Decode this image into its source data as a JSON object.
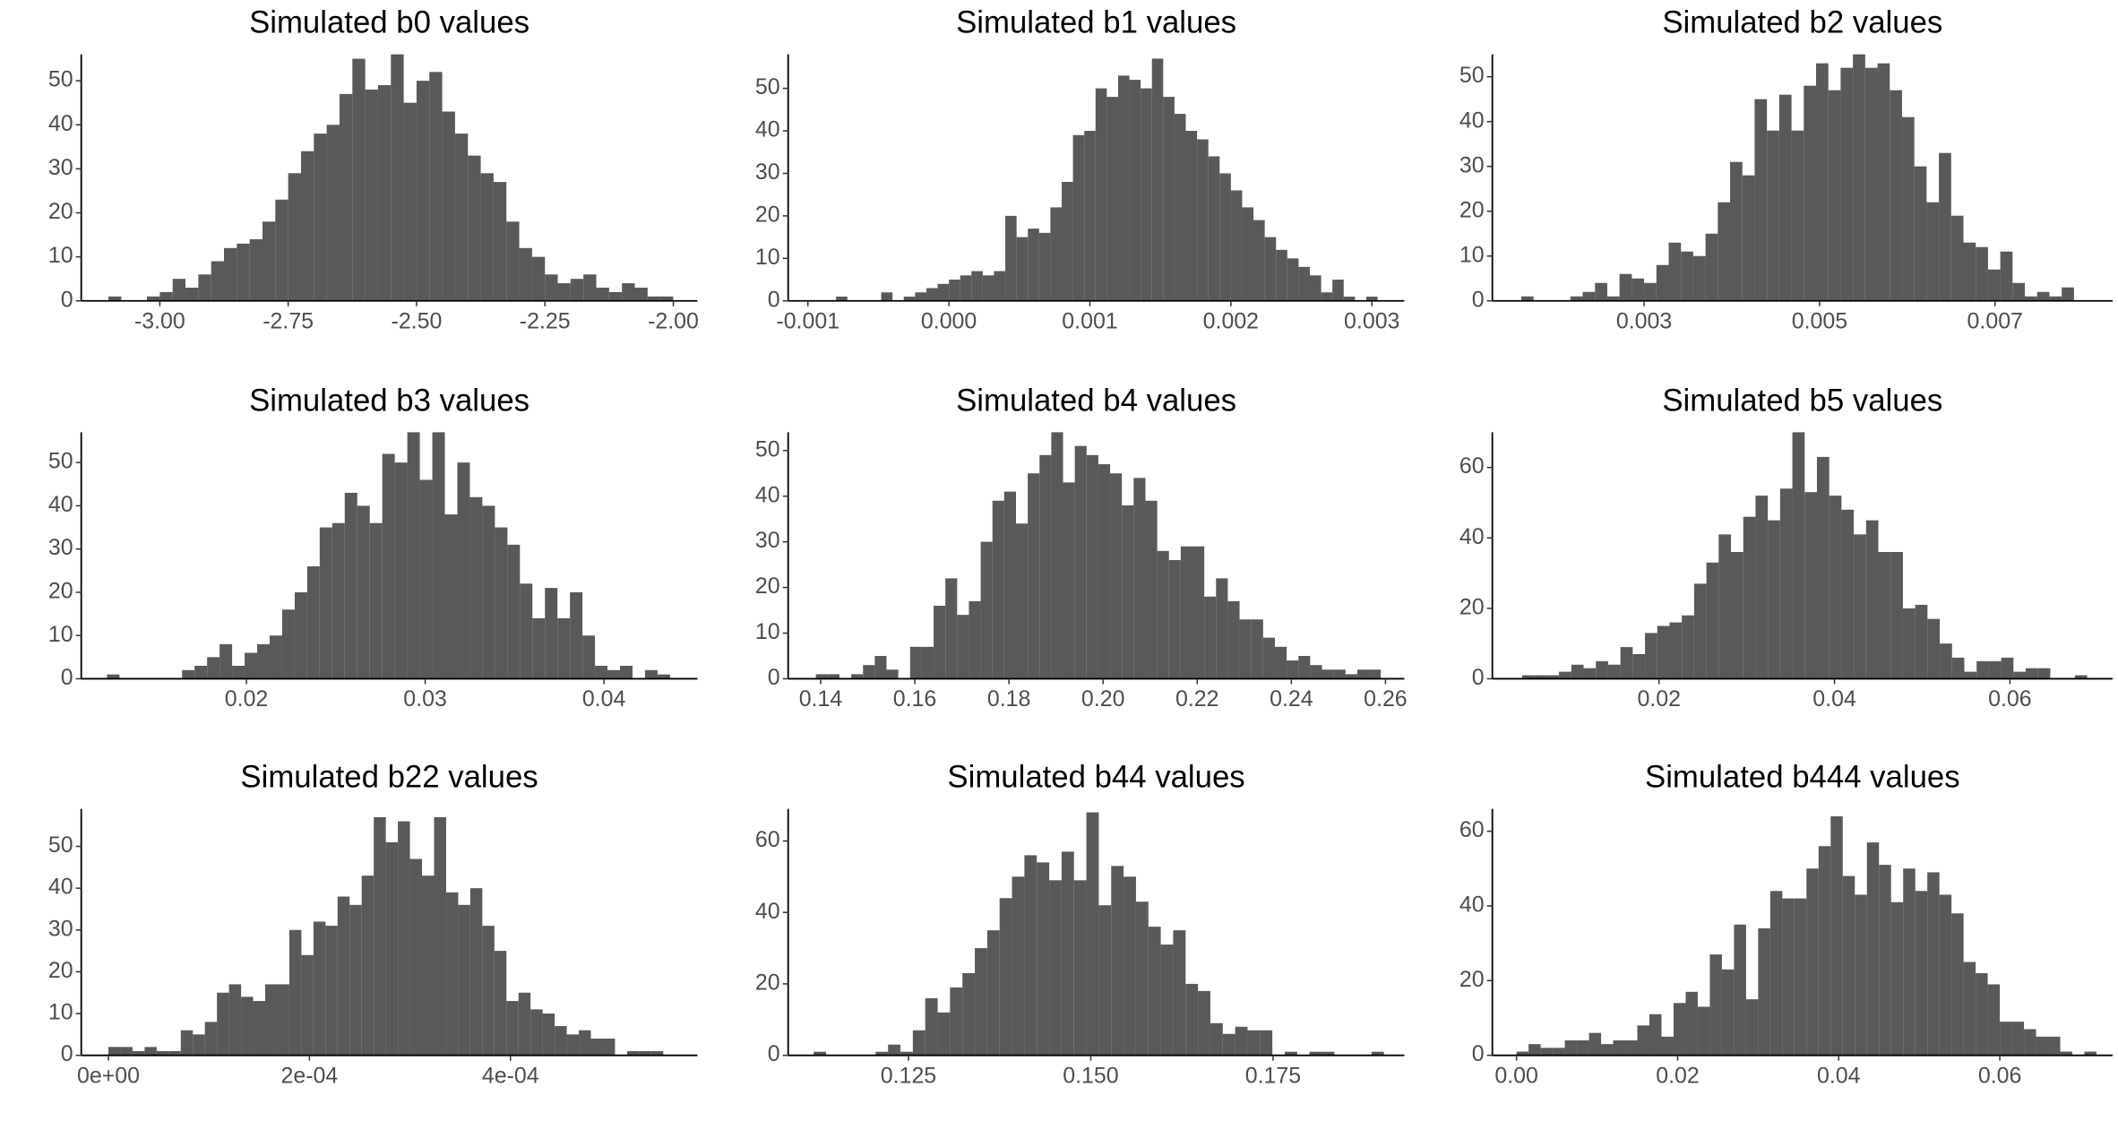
{
  "chart_data": [
    {
      "type": "histogram",
      "title": "Simulated b0 values",
      "color": "#595959",
      "bins": [
        -3.1,
        -3.075,
        -3.05,
        -3.025,
        -3,
        -2.975,
        -2.95,
        -2.925,
        -2.9,
        -2.875,
        -2.85,
        -2.825,
        -2.8,
        -2.775,
        -2.75,
        -2.725,
        -2.7,
        -2.675,
        -2.65,
        -2.625,
        -2.6,
        -2.575,
        -2.55,
        -2.525,
        -2.5,
        -2.475,
        -2.45,
        -2.425,
        -2.4,
        -2.375,
        -2.35,
        -2.325,
        -2.3,
        -2.275,
        -2.25,
        -2.225,
        -2.2,
        -2.175,
        -2.15,
        -2.125,
        -2.1,
        -2.075,
        -2.05,
        -2.025,
        -2
      ],
      "values": [
        1,
        0,
        0,
        1,
        2,
        5,
        3,
        6,
        9,
        12,
        13,
        14,
        18,
        23,
        29,
        34,
        38,
        40,
        47,
        55,
        48,
        49,
        56,
        45,
        50,
        52,
        43,
        38,
        33,
        29,
        27,
        18,
        12,
        10,
        6,
        4,
        5,
        6,
        3,
        2,
        4,
        3,
        1,
        1
      ],
      "xlim": [
        -3.153,
        -1.953
      ],
      "ylim": [
        0,
        56
      ],
      "xticks": [
        {
          "value": -3,
          "label": "-3.00"
        },
        -2.75,
        {
          "value": -2.5,
          "label": "-2.50"
        },
        -2.25,
        {
          "value": -2,
          "label": "-2.00"
        }
      ],
      "yticks": [
        0,
        10,
        20,
        30,
        40,
        50
      ]
    },
    {
      "type": "histogram",
      "title": "Simulated b1 values",
      "color": "#595959",
      "bins": [
        -0.0008,
        -0.00072,
        -0.00064,
        -0.00056,
        -0.00048,
        -0.0004,
        -0.00032,
        -0.00024,
        -0.00016,
        -8e-05,
        0,
        8e-05,
        0.00016,
        0.00024,
        0.00032,
        0.0004,
        0.00048,
        0.00056,
        0.00064,
        0.00072,
        0.0008,
        0.00088,
        0.00096,
        0.00104,
        0.00112,
        0.0012,
        0.00128,
        0.00136,
        0.00144,
        0.00152,
        0.0016,
        0.00168,
        0.00176,
        0.00184,
        0.00192,
        0.002,
        0.00208,
        0.00216,
        0.00224,
        0.00232,
        0.0024,
        0.00248,
        0.00256,
        0.00264,
        0.00272,
        0.0028,
        0.00288,
        0.00296,
        0.00304
      ],
      "values": [
        1,
        0,
        0,
        0,
        2,
        0,
        1,
        2,
        3,
        4,
        5,
        6,
        7,
        6,
        7,
        20,
        15,
        17,
        16,
        22,
        28,
        39,
        40,
        50,
        48,
        53,
        52,
        50,
        57,
        48,
        44,
        40,
        38,
        34,
        30,
        26,
        22,
        19,
        15,
        12,
        10,
        8,
        6,
        2,
        5,
        1,
        0,
        1
      ],
      "xlim": [
        -0.00114,
        0.00323
      ],
      "ylim": [
        0,
        58
      ],
      "xticks": [
        -0.001,
        {
          "value": 0,
          "label": "0.000"
        },
        0.001,
        0.002,
        0.003
      ],
      "yticks": [
        0,
        10,
        20,
        30,
        40,
        50
      ]
    },
    {
      "type": "histogram",
      "title": "Simulated b2 values",
      "color": "#595959",
      "bins": [
        0.0016,
        0.00174,
        0.00188,
        0.00202,
        0.00216,
        0.0023,
        0.00244,
        0.00258,
        0.00272,
        0.00286,
        0.003,
        0.00314,
        0.00328,
        0.00342,
        0.00356,
        0.0037,
        0.00384,
        0.00398,
        0.00412,
        0.00426,
        0.0044,
        0.00454,
        0.00468,
        0.00482,
        0.00496,
        0.0051,
        0.00524,
        0.00538,
        0.00552,
        0.00566,
        0.0058,
        0.00594,
        0.00608,
        0.00622,
        0.00636,
        0.0065,
        0.00664,
        0.00678,
        0.00692,
        0.00706,
        0.0072,
        0.00734,
        0.00748,
        0.00762,
        0.00776,
        0.0079
      ],
      "values": [
        1,
        0,
        0,
        0,
        1,
        2,
        4,
        1,
        6,
        5,
        4,
        8,
        13,
        11,
        10,
        15,
        22,
        31,
        28,
        45,
        38,
        46,
        38,
        48,
        53,
        47,
        52,
        55,
        52,
        53,
        47,
        41,
        30,
        22,
        33,
        19,
        13,
        12,
        7,
        11,
        4,
        1,
        2,
        1,
        3
      ],
      "xlim": [
        0.00127,
        0.00834
      ],
      "ylim": [
        0,
        55
      ],
      "xticks": [
        0.003,
        0.005,
        0.007
      ],
      "yticks": [
        0,
        10,
        20,
        30,
        40,
        50
      ]
    },
    {
      "type": "histogram",
      "title": "Simulated b3 values",
      "color": "#595959",
      "bins": [
        0.0122,
        0.0129,
        0.0136,
        0.0143,
        0.015,
        0.0157,
        0.0164,
        0.0171,
        0.0178,
        0.0185,
        0.0192,
        0.0199,
        0.0206,
        0.0213,
        0.022,
        0.0227,
        0.0234,
        0.0241,
        0.0248,
        0.0255,
        0.0262,
        0.0269,
        0.0276,
        0.0283,
        0.029,
        0.0297,
        0.0304,
        0.0311,
        0.0318,
        0.0325,
        0.0332,
        0.0339,
        0.0346,
        0.0353,
        0.036,
        0.0367,
        0.0374,
        0.0381,
        0.0388,
        0.0395,
        0.0402,
        0.0409,
        0.0416,
        0.0423,
        0.043,
        0.0437
      ],
      "values": [
        1,
        0,
        0,
        0,
        0,
        0,
        2,
        3,
        5,
        8,
        3,
        6,
        8,
        10,
        16,
        20,
        26,
        35,
        36,
        43,
        40,
        36,
        52,
        50,
        57,
        46,
        57,
        38,
        50,
        42,
        40,
        35,
        31,
        22,
        14,
        21,
        14,
        20,
        10,
        3,
        2,
        3,
        0,
        2,
        1
      ],
      "xlim": [
        0.01076,
        0.04523
      ],
      "ylim": [
        0,
        57
      ],
      "xticks": [
        0.02,
        0.03,
        0.04
      ],
      "yticks": [
        0,
        10,
        20,
        30,
        40,
        50
      ]
    },
    {
      "type": "histogram",
      "title": "Simulated b4 values",
      "color": "#595959",
      "bins": [
        0.139,
        0.1415,
        0.144,
        0.1465,
        0.149,
        0.1515,
        0.154,
        0.1565,
        0.159,
        0.1615,
        0.164,
        0.1665,
        0.169,
        0.1715,
        0.174,
        0.1765,
        0.179,
        0.1815,
        0.184,
        0.1865,
        0.189,
        0.1915,
        0.194,
        0.1965,
        0.199,
        0.2015,
        0.204,
        0.2065,
        0.209,
        0.2115,
        0.214,
        0.2165,
        0.219,
        0.2215,
        0.224,
        0.2265,
        0.229,
        0.2315,
        0.234,
        0.2365,
        0.239,
        0.2415,
        0.244,
        0.2465,
        0.249,
        0.2515,
        0.254,
        0.2565,
        0.259
      ],
      "values": [
        1,
        1,
        0,
        1,
        3,
        5,
        2,
        0,
        7,
        7,
        16,
        22,
        14,
        17,
        30,
        39,
        41,
        34,
        45,
        49,
        54,
        43,
        51,
        49,
        47,
        45,
        38,
        44,
        39,
        28,
        26,
        29,
        29,
        18,
        22,
        17,
        13,
        13,
        9,
        7,
        4,
        5,
        3,
        2,
        2,
        1,
        2,
        2
      ],
      "xlim": [
        0.1331,
        0.264
      ],
      "ylim": [
        0,
        54
      ],
      "xticks": [
        0.14,
        0.16,
        0.18,
        {
          "value": 0.2,
          "label": "0.20"
        },
        0.22,
        0.24,
        0.26
      ],
      "yticks": [
        0,
        10,
        20,
        30,
        40,
        50
      ]
    },
    {
      "type": "histogram",
      "title": "Simulated b5 values",
      "color": "#595959",
      "bins": [
        0.0044,
        0.0058,
        0.0072,
        0.0086,
        0.01,
        0.0114,
        0.0128,
        0.0142,
        0.0156,
        0.017,
        0.0184,
        0.0198,
        0.0212,
        0.0226,
        0.024,
        0.0254,
        0.0268,
        0.0282,
        0.0296,
        0.031,
        0.0324,
        0.0338,
        0.0352,
        0.0366,
        0.038,
        0.0394,
        0.0408,
        0.0422,
        0.0436,
        0.045,
        0.0464,
        0.0478,
        0.0492,
        0.0506,
        0.052,
        0.0534,
        0.0548,
        0.0562,
        0.0576,
        0.059,
        0.0604,
        0.0618,
        0.0632,
        0.0646,
        0.066,
        0.0674,
        0.0688
      ],
      "values": [
        1,
        1,
        1,
        2,
        4,
        3,
        5,
        4,
        9,
        7,
        13,
        15,
        16,
        18,
        27,
        33,
        41,
        36,
        46,
        52,
        45,
        54,
        70,
        53,
        63,
        52,
        48,
        41,
        45,
        36,
        36,
        20,
        21,
        17,
        10,
        6,
        2,
        5,
        5,
        6,
        2,
        3,
        3,
        0,
        0,
        1
      ],
      "xlim": [
        0.001,
        0.0717
      ],
      "ylim": [
        0,
        70
      ],
      "xticks": [
        0.02,
        0.04,
        0.06
      ],
      "yticks": [
        0,
        20,
        40,
        60
      ]
    },
    {
      "type": "histogram",
      "title": "Simulated b22 values",
      "color": "#595959",
      "bins": [
        0,
        1.2e-05,
        2.4e-05,
        3.6e-05,
        4.8e-05,
        6e-05,
        7.2e-05,
        8.4e-05,
        9.6e-05,
        0.000108,
        0.00012,
        0.000132,
        0.000144,
        0.000156,
        0.000168,
        0.00018,
        0.000192,
        0.000204,
        0.000216,
        0.000228,
        0.00024,
        0.000252,
        0.000264,
        0.000276,
        0.000288,
        0.0003,
        0.000312,
        0.000324,
        0.000336,
        0.000348,
        0.00036,
        0.000372,
        0.000384,
        0.000396,
        0.000408,
        0.00042,
        0.000432,
        0.000444,
        0.000456,
        0.000468,
        0.00048,
        0.000492,
        0.000504,
        0.000516,
        0.000528,
        0.00054,
        0.000552
      ],
      "values": [
        2,
        2,
        1,
        2,
        1,
        1,
        6,
        5,
        8,
        15,
        17,
        14,
        13,
        17,
        17,
        30,
        24,
        32,
        31,
        38,
        36,
        43,
        57,
        51,
        56,
        47,
        43,
        57,
        39,
        36,
        40,
        31,
        25,
        13,
        15,
        11,
        10,
        7,
        5,
        6,
        4,
        4,
        0,
        1,
        1,
        1
      ],
      "xlim": [
        -2.7e-05,
        0.000586
      ],
      "ylim": [
        0,
        59
      ],
      "xticks": [
        {
          "value": 0,
          "label": "0e+00"
        },
        {
          "value": 0.0002,
          "label": "2e-04"
        },
        {
          "value": 0.0004,
          "label": "4e-04"
        }
      ],
      "yticks": [
        0,
        10,
        20,
        30,
        40,
        50
      ]
    },
    {
      "type": "histogram",
      "title": "Simulated b44 values",
      "color": "#595959",
      "bins": [
        0.112,
        0.1137,
        0.1154,
        0.1171,
        0.1188,
        0.1205,
        0.1222,
        0.1239,
        0.1256,
        0.1273,
        0.129,
        0.1307,
        0.1324,
        0.1341,
        0.1358,
        0.1375,
        0.1392,
        0.1409,
        0.1426,
        0.1443,
        0.146,
        0.1477,
        0.1494,
        0.1511,
        0.1528,
        0.1545,
        0.1562,
        0.1579,
        0.1596,
        0.1613,
        0.163,
        0.1647,
        0.1664,
        0.1681,
        0.1698,
        0.1715,
        0.1732,
        0.1749,
        0.1766,
        0.1783,
        0.18,
        0.1817,
        0.1834,
        0.1851,
        0.1868,
        0.1885,
        0.1902
      ],
      "values": [
        1,
        0,
        0,
        0,
        0,
        1,
        3,
        1,
        7,
        16,
        12,
        19,
        23,
        30,
        35,
        44,
        50,
        56,
        54,
        49,
        57,
        49,
        68,
        42,
        53,
        50,
        43,
        36,
        31,
        35,
        20,
        18,
        9,
        6,
        8,
        7,
        7,
        0,
        1,
        0,
        1,
        1,
        0,
        0,
        0,
        1
      ],
      "xlim": [
        0.1085,
        0.193
      ],
      "ylim": [
        0,
        69
      ],
      "xticks": [
        0.125,
        {
          "value": 0.15,
          "label": "0.150"
        },
        0.175
      ],
      "yticks": [
        0,
        20,
        40,
        60
      ]
    },
    {
      "type": "histogram",
      "title": "Simulated b444 values",
      "color": "#595959",
      "bins": [
        0,
        0.0015,
        0.003,
        0.0045,
        0.006,
        0.0075,
        0.009,
        0.0105,
        0.012,
        0.0135,
        0.015,
        0.0165,
        0.018,
        0.0195,
        0.021,
        0.0225,
        0.024,
        0.0255,
        0.027,
        0.0285,
        0.03,
        0.0315,
        0.033,
        0.0345,
        0.036,
        0.0375,
        0.039,
        0.0405,
        0.042,
        0.0435,
        0.045,
        0.0465,
        0.048,
        0.0495,
        0.051,
        0.0525,
        0.054,
        0.0555,
        0.057,
        0.0585,
        0.06,
        0.0615,
        0.063,
        0.0645,
        0.066,
        0.0675,
        0.069,
        0.0705,
        0.072
      ],
      "values": [
        1,
        3,
        2,
        2,
        4,
        4,
        6,
        3,
        4,
        4,
        8,
        11,
        5,
        14,
        17,
        13,
        27,
        23,
        35,
        15,
        34,
        44,
        42,
        42,
        50,
        56,
        64,
        48,
        43,
        57,
        51,
        41,
        50,
        44,
        49,
        43,
        38,
        25,
        22,
        19,
        9,
        9,
        7,
        5,
        5,
        1,
        0,
        1
      ],
      "xlim": [
        -0.003,
        0.074
      ],
      "ylim": [
        0,
        66
      ],
      "xticks": [
        {
          "value": 0,
          "label": "0.00"
        },
        0.02,
        0.04,
        0.06
      ],
      "yticks": [
        0,
        20,
        40,
        60
      ]
    }
  ]
}
